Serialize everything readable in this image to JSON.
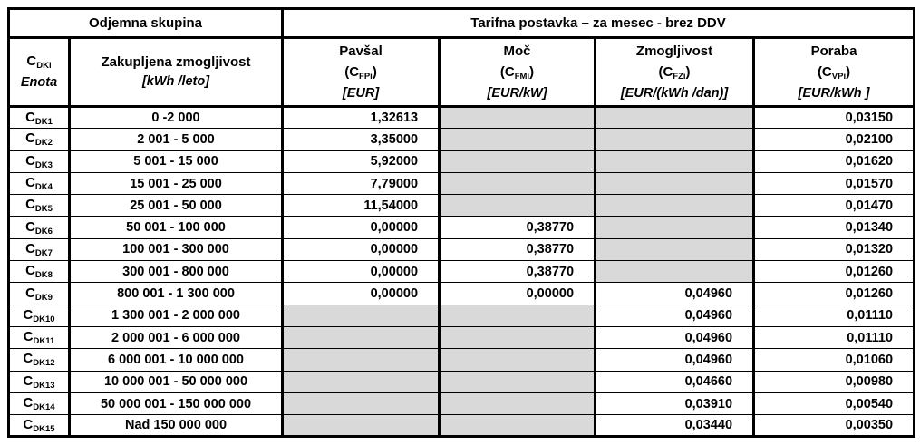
{
  "colors": {
    "border": "#000000",
    "shaded_cell": "#d9d9d9",
    "text": "#000000",
    "background": "#ffffff"
  },
  "table": {
    "group_header": {
      "left": "Odjemna skupina",
      "right": "Tarifna postavka – za mesec - brez DDV"
    },
    "column_headers": {
      "code": {
        "symbol": "C",
        "subscript": "DKi",
        "unit_label": "Enota"
      },
      "capacity": {
        "title": "Zakupljena zmogljivost",
        "unit": "[kWh /leto]"
      },
      "pavsal": {
        "title": "Pavšal",
        "symbol_pre": "(C",
        "subscript": "FPi",
        "symbol_post": ")",
        "unit": "[EUR]"
      },
      "moc": {
        "title": "Moč",
        "symbol_pre": "(C",
        "subscript": "FMi",
        "symbol_post": ")",
        "unit": "[EUR/kW]"
      },
      "zmogljivost": {
        "title": "Zmogljivost",
        "symbol_pre": "(C",
        "subscript": "FZi",
        "symbol_post": ")",
        "unit": "[EUR/(kWh /dan)]"
      },
      "poraba": {
        "title": "Poraba",
        "symbol_pre": "(C",
        "subscript": "VPi",
        "symbol_post": ")",
        "unit": "[EUR/kWh ]"
      }
    },
    "rows": [
      {
        "code": "C",
        "code_sub": "DK1",
        "range": "0 -2 000",
        "pavsal": "1,32613",
        "moc": null,
        "zmogljivost": null,
        "poraba": "0,03150"
      },
      {
        "code": "C",
        "code_sub": "DK2",
        "range": "2 001 - 5 000",
        "pavsal": "3,35000",
        "moc": null,
        "zmogljivost": null,
        "poraba": "0,02100"
      },
      {
        "code": "C",
        "code_sub": "DK3",
        "range": "5 001 - 15 000",
        "pavsal": "5,92000",
        "moc": null,
        "zmogljivost": null,
        "poraba": "0,01620"
      },
      {
        "code": "C",
        "code_sub": "DK4",
        "range": "15 001 - 25 000",
        "pavsal": "7,79000",
        "moc": null,
        "zmogljivost": null,
        "poraba": "0,01570"
      },
      {
        "code": "C",
        "code_sub": "DK5",
        "range": "25 001 - 50 000",
        "pavsal": "11,54000",
        "moc": null,
        "zmogljivost": null,
        "poraba": "0,01470"
      },
      {
        "code": "C",
        "code_sub": "DK6",
        "range": "50 001 - 100 000",
        "pavsal": "0,00000",
        "moc": "0,38770",
        "zmogljivost": null,
        "poraba": "0,01340"
      },
      {
        "code": "C",
        "code_sub": "DK7",
        "range": "100 001 - 300 000",
        "pavsal": "0,00000",
        "moc": "0,38770",
        "zmogljivost": null,
        "poraba": "0,01320"
      },
      {
        "code": "C",
        "code_sub": "DK8",
        "range": "300 001 - 800 000",
        "pavsal": "0,00000",
        "moc": "0,38770",
        "zmogljivost": null,
        "poraba": "0,01260"
      },
      {
        "code": "C",
        "code_sub": "DK9",
        "range": "800 001 - 1 300 000",
        "pavsal": "0,00000",
        "moc": "0,00000",
        "zmogljivost": "0,04960",
        "poraba": "0,01260"
      },
      {
        "code": "C",
        "code_sub": "DK10",
        "range": "1 300 001 - 2 000 000",
        "pavsal": null,
        "moc": null,
        "zmogljivost": "0,04960",
        "poraba": "0,01110"
      },
      {
        "code": "C",
        "code_sub": "DK11",
        "range": "2 000 001 - 6 000 000",
        "pavsal": null,
        "moc": null,
        "zmogljivost": "0,04960",
        "poraba": "0,01110"
      },
      {
        "code": "C",
        "code_sub": "DK12",
        "range": "6 000 001 - 10 000 000",
        "pavsal": null,
        "moc": null,
        "zmogljivost": "0,04960",
        "poraba": "0,01060"
      },
      {
        "code": "C",
        "code_sub": "DK13",
        "range": "10 000 001 - 50 000 000",
        "pavsal": null,
        "moc": null,
        "zmogljivost": "0,04660",
        "poraba": "0,00980"
      },
      {
        "code": "C",
        "code_sub": "DK14",
        "range": "50 000 001 - 150 000 000",
        "pavsal": null,
        "moc": null,
        "zmogljivost": "0,03910",
        "poraba": "0,00540"
      },
      {
        "code": "C",
        "code_sub": "DK15",
        "range": "Nad 150 000 000",
        "pavsal": null,
        "moc": null,
        "zmogljivost": "0,03440",
        "poraba": "0,00350"
      }
    ]
  }
}
